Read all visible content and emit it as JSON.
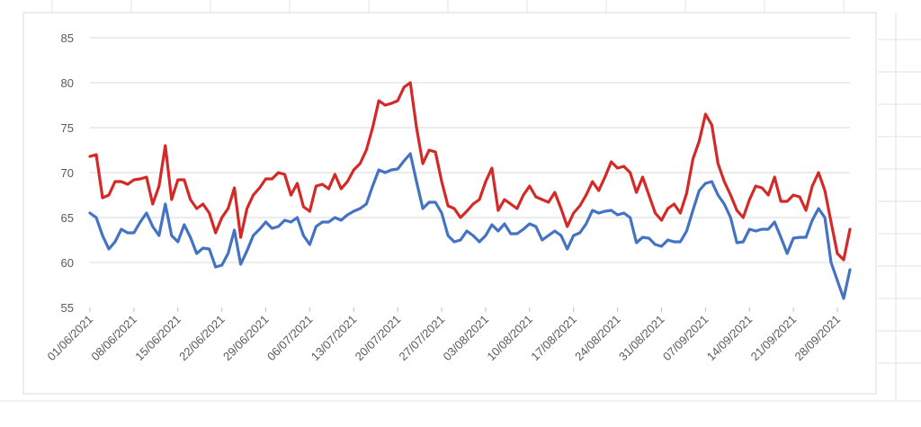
{
  "chart_data": {
    "type": "line",
    "title": "",
    "xlabel": "",
    "ylabel": "",
    "ylim": [
      55,
      85
    ],
    "yticks": [
      55,
      60,
      65,
      70,
      75,
      80,
      85
    ],
    "grid": true,
    "legend": "none",
    "x_start": "2021-06-01",
    "x_end": "2021-09-30",
    "xtick_labels": [
      "01/06/2021",
      "08/06/2021",
      "15/06/2021",
      "22/06/2021",
      "29/06/2021",
      "06/07/2021",
      "13/07/2021",
      "20/07/2021",
      "27/07/2021",
      "03/08/2021",
      "10/08/2021",
      "17/08/2021",
      "24/08/2021",
      "31/08/2021",
      "07/09/2021",
      "14/09/2021",
      "21/09/2021",
      "28/09/2021"
    ],
    "series": [
      {
        "color": "#d42a27",
        "values": [
          71.8,
          72.0,
          67.2,
          67.5,
          69.0,
          69.0,
          68.7,
          69.2,
          69.3,
          69.5,
          66.5,
          68.5,
          73.0,
          67.0,
          69.2,
          69.2,
          67.0,
          66.0,
          66.5,
          65.5,
          63.3,
          65.0,
          66.0,
          68.3,
          62.8,
          66.0,
          67.5,
          68.3,
          69.3,
          69.3,
          70.0,
          69.8,
          67.5,
          68.8,
          66.2,
          65.7,
          68.5,
          68.7,
          68.2,
          69.8,
          68.2,
          69.0,
          70.3,
          71.0,
          72.5,
          75.0,
          78.0,
          77.5,
          77.7,
          78.0,
          79.5,
          80.0,
          75.0,
          71.0,
          72.5,
          72.3,
          69.0,
          66.3,
          66.0,
          65.0,
          65.7,
          66.5,
          67.0,
          69.0,
          70.5,
          65.8,
          67.0,
          66.5,
          66.0,
          67.5,
          68.5,
          67.3,
          67.0,
          66.7,
          67.8,
          66.0,
          64.0,
          65.5,
          66.3,
          67.5,
          69.0,
          68.0,
          69.5,
          71.2,
          70.5,
          70.7,
          70.0,
          67.8,
          69.5,
          67.5,
          65.5,
          64.7,
          66.0,
          66.5,
          65.5,
          67.7,
          71.5,
          73.5,
          76.5,
          75.3,
          71.0,
          69.0,
          67.5,
          65.8,
          65.0,
          67.0,
          68.5,
          68.3,
          67.5,
          69.5,
          66.8,
          66.8,
          67.5,
          67.3,
          65.8,
          68.5,
          70.0,
          68.0,
          64.5,
          61.0,
          60.3,
          63.7
        ]
      },
      {
        "color": "#4472c4",
        "values": [
          65.5,
          65.0,
          63.0,
          61.5,
          62.3,
          63.7,
          63.3,
          63.3,
          64.5,
          65.5,
          64.0,
          63.0,
          66.5,
          63.0,
          62.3,
          64.2,
          62.8,
          61.0,
          61.6,
          61.5,
          59.5,
          59.7,
          61.0,
          63.6,
          59.8,
          61.3,
          63.0,
          63.7,
          64.5,
          63.8,
          64.0,
          64.7,
          64.5,
          65.0,
          63.0,
          62.0,
          64.0,
          64.5,
          64.5,
          65.0,
          64.7,
          65.3,
          65.7,
          66.0,
          66.5,
          68.5,
          70.3,
          70.0,
          70.3,
          70.4,
          71.3,
          72.1,
          69.0,
          66.0,
          66.7,
          66.7,
          65.5,
          63.0,
          62.3,
          62.5,
          63.5,
          63.0,
          62.3,
          63.0,
          64.2,
          63.5,
          64.3,
          63.2,
          63.2,
          63.7,
          64.3,
          64.0,
          62.5,
          63.0,
          63.5,
          63.0,
          61.5,
          63.0,
          63.3,
          64.3,
          65.8,
          65.5,
          65.7,
          65.8,
          65.3,
          65.5,
          65.0,
          62.2,
          62.8,
          62.7,
          62.0,
          61.8,
          62.5,
          62.3,
          62.3,
          63.5,
          65.8,
          68.0,
          68.8,
          69.0,
          67.5,
          66.5,
          65.0,
          62.2,
          62.3,
          63.7,
          63.5,
          63.7,
          63.7,
          64.5,
          62.8,
          61.0,
          62.7,
          62.8,
          62.8,
          64.7,
          66.0,
          65.0,
          60.0,
          58.0,
          56.0,
          59.2
        ]
      }
    ]
  }
}
